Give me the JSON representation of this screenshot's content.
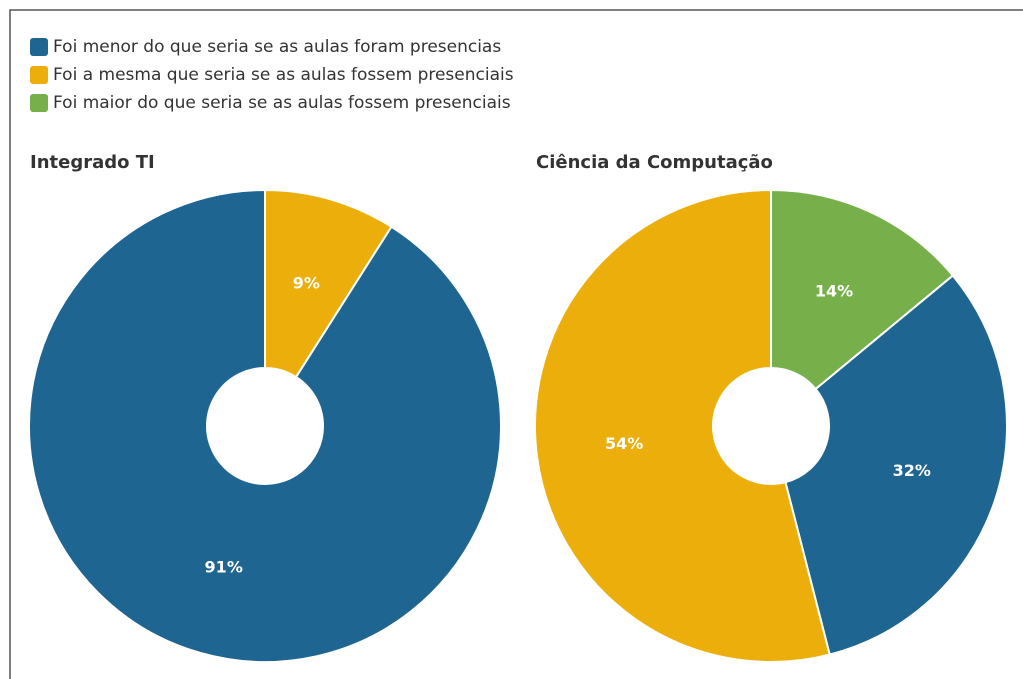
{
  "legend": [
    {
      "name": "Foi menor do que seria se as aulas foram presencias",
      "color": "#1f6591"
    },
    {
      "name": "Foi a mesma que seria se as aulas fossem presenciais",
      "color": "#ecae0a"
    },
    {
      "name": "Foi maior do que seria se as aulas fossem presenciais",
      "color": "#77b04a"
    }
  ],
  "chart_data": [
    {
      "type": "pie",
      "title": "Integrado TI",
      "values": [
        9,
        91
      ],
      "value_labels": [
        "9%",
        "91%"
      ],
      "colors": [
        "#ecae0a",
        "#1f6591"
      ]
    },
    {
      "type": "pie",
      "title": "Ciência da Computação",
      "values": [
        14,
        32,
        54
      ],
      "value_labels": [
        "14%",
        "32%",
        "54%"
      ],
      "colors": [
        "#77b04a",
        "#1f6591",
        "#ecae0a"
      ]
    }
  ]
}
